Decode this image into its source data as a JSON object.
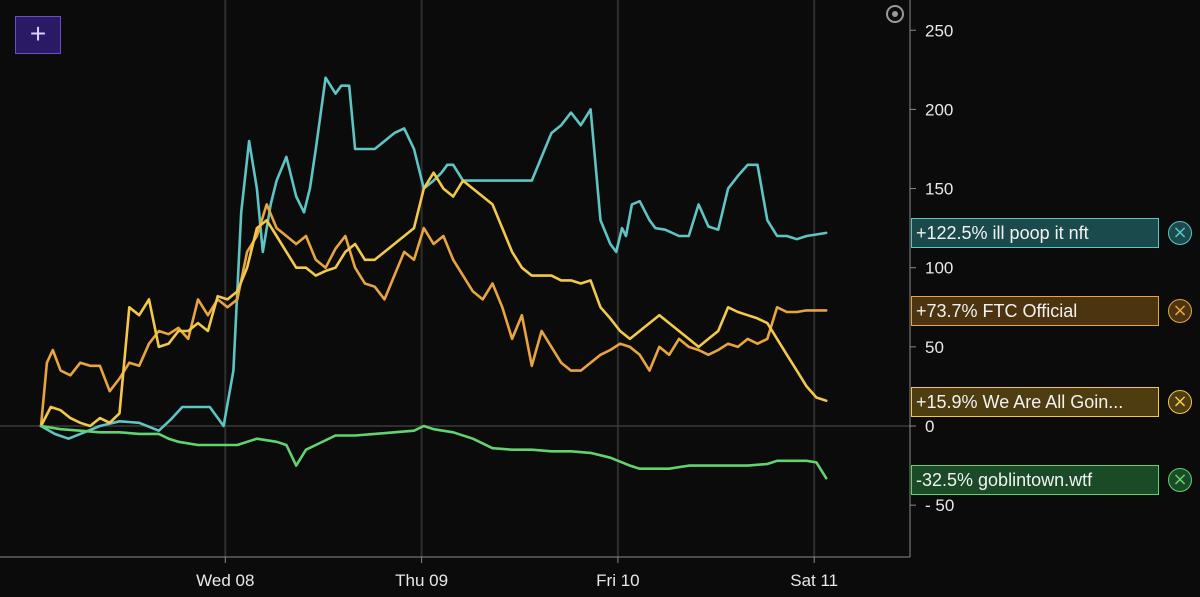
{
  "toolbar": {
    "add_icon": "plus-icon",
    "add_label": "+",
    "settings_icon": "target-icon"
  },
  "chart_data": {
    "type": "line",
    "title": "",
    "xlabel": "",
    "ylabel": "",
    "ylim": [
      -90,
      265
    ],
    "y_ticks": [
      250,
      200,
      150,
      100,
      50,
      0,
      -50
    ],
    "y_tick_labels": [
      "250",
      "200",
      "150",
      "100",
      "50",
      "0",
      "- 50"
    ],
    "x_ticks": [
      {
        "x": 1.0,
        "label": "Wed 08"
      },
      {
        "x": 2.0,
        "label": "Thu 09"
      },
      {
        "x": 3.0,
        "label": "Fri 10"
      },
      {
        "x": 4.0,
        "label": "Sat 11"
      }
    ],
    "xlim": [
      -0.2,
      4.43
    ],
    "grid": true,
    "legend_position": "right",
    "series": [
      {
        "name": "ill poop it nft",
        "legend_label": "+122.5% ill poop it nft",
        "color": "#5ec4c4",
        "legend_bg": "#1b4a4d",
        "close_icon": "close-icon",
        "x": [
          0.0,
          0.07,
          0.14,
          0.2,
          0.3,
          0.4,
          0.5,
          0.6,
          0.66,
          0.72,
          0.8,
          0.86,
          0.93,
          0.98,
          1.02,
          1.06,
          1.1,
          1.13,
          1.17,
          1.2,
          1.25,
          1.3,
          1.34,
          1.37,
          1.4,
          1.45,
          1.5,
          1.53,
          1.57,
          1.6,
          1.65,
          1.7,
          1.75,
          1.8,
          1.85,
          1.9,
          1.95,
          2.0,
          2.04,
          2.07,
          2.1,
          2.15,
          2.2,
          2.25,
          2.3,
          2.4,
          2.5,
          2.6,
          2.65,
          2.7,
          2.75,
          2.8,
          2.85,
          2.9,
          2.93,
          2.96,
          2.98,
          3.01,
          3.05,
          3.1,
          3.13,
          3.18,
          3.25,
          3.3,
          3.35,
          3.4,
          3.45,
          3.5,
          3.55,
          3.6,
          3.65,
          3.7,
          3.75,
          3.8,
          3.85,
          3.9,
          3.95,
          4.0
        ],
        "y": [
          0,
          -5,
          -8,
          -5,
          0,
          3,
          2,
          -3,
          4,
          12,
          12,
          12,
          0,
          35,
          135,
          180,
          150,
          110,
          140,
          155,
          170,
          145,
          135,
          150,
          175,
          220,
          210,
          215,
          215,
          175,
          175,
          175,
          180,
          185,
          188,
          175,
          150,
          155,
          160,
          165,
          165,
          155,
          155,
          155,
          155,
          155,
          155,
          185,
          190,
          198,
          190,
          200,
          130,
          115,
          110,
          125,
          120,
          140,
          142,
          130,
          125,
          124,
          120,
          120,
          140,
          126,
          124,
          150,
          158,
          165,
          165,
          130,
          120,
          120,
          118,
          120,
          121,
          122
        ]
      },
      {
        "name": "FTC Official",
        "legend_label": "+73.7% FTC Official",
        "color": "#e8a53f",
        "legend_bg": "#4d3410",
        "close_icon": "close-icon",
        "x": [
          0.0,
          0.03,
          0.06,
          0.1,
          0.15,
          0.2,
          0.25,
          0.3,
          0.35,
          0.4,
          0.45,
          0.5,
          0.55,
          0.6,
          0.65,
          0.7,
          0.75,
          0.8,
          0.85,
          0.9,
          0.95,
          1.0,
          1.05,
          1.1,
          1.15,
          1.2,
          1.25,
          1.3,
          1.35,
          1.4,
          1.45,
          1.5,
          1.55,
          1.6,
          1.65,
          1.7,
          1.75,
          1.8,
          1.85,
          1.9,
          1.95,
          2.0,
          2.05,
          2.1,
          2.15,
          2.2,
          2.25,
          2.3,
          2.35,
          2.4,
          2.45,
          2.5,
          2.55,
          2.6,
          2.65,
          2.7,
          2.75,
          2.8,
          2.85,
          2.9,
          2.95,
          3.0,
          3.05,
          3.1,
          3.15,
          3.2,
          3.25,
          3.3,
          3.35,
          3.4,
          3.45,
          3.5,
          3.55,
          3.6,
          3.65,
          3.7,
          3.75,
          3.8,
          3.85,
          3.9,
          3.95,
          4.0
        ],
        "y": [
          0,
          40,
          48,
          35,
          32,
          40,
          38,
          38,
          22,
          30,
          40,
          38,
          52,
          60,
          58,
          62,
          55,
          80,
          70,
          80,
          75,
          80,
          110,
          120,
          140,
          125,
          120,
          115,
          120,
          105,
          100,
          112,
          120,
          100,
          90,
          88,
          80,
          95,
          110,
          105,
          125,
          115,
          120,
          105,
          95,
          85,
          80,
          90,
          75,
          55,
          70,
          38,
          60,
          50,
          40,
          35,
          35,
          40,
          45,
          48,
          52,
          50,
          45,
          35,
          50,
          45,
          55,
          50,
          48,
          45,
          48,
          52,
          50,
          55,
          52,
          55,
          75,
          72,
          72,
          73,
          73,
          73
        ]
      },
      {
        "name": "We Are All Goin...",
        "legend_label": "+15.9% We Are All Goin...",
        "color": "#f2c94a",
        "legend_bg": "#4d3d10",
        "close_icon": "close-icon",
        "x": [
          0.0,
          0.05,
          0.1,
          0.15,
          0.2,
          0.25,
          0.3,
          0.35,
          0.4,
          0.45,
          0.5,
          0.55,
          0.6,
          0.65,
          0.7,
          0.75,
          0.8,
          0.85,
          0.9,
          0.95,
          1.0,
          1.05,
          1.1,
          1.15,
          1.2,
          1.25,
          1.3,
          1.35,
          1.4,
          1.45,
          1.5,
          1.55,
          1.6,
          1.65,
          1.7,
          1.75,
          1.8,
          1.85,
          1.9,
          1.95,
          2.0,
          2.05,
          2.1,
          2.15,
          2.2,
          2.25,
          2.3,
          2.35,
          2.4,
          2.45,
          2.5,
          2.55,
          2.6,
          2.65,
          2.7,
          2.75,
          2.8,
          2.85,
          2.9,
          2.95,
          3.0,
          3.05,
          3.1,
          3.15,
          3.2,
          3.25,
          3.3,
          3.35,
          3.4,
          3.45,
          3.5,
          3.55,
          3.6,
          3.65,
          3.7,
          3.75,
          3.8,
          3.85,
          3.9,
          3.95,
          4.0
        ],
        "y": [
          0,
          12,
          10,
          5,
          2,
          0,
          5,
          2,
          8,
          75,
          70,
          80,
          50,
          52,
          60,
          60,
          65,
          60,
          82,
          80,
          85,
          100,
          125,
          130,
          120,
          110,
          100,
          100,
          95,
          98,
          100,
          110,
          115,
          105,
          105,
          110,
          115,
          120,
          125,
          150,
          160,
          150,
          145,
          155,
          150,
          145,
          140,
          125,
          110,
          100,
          95,
          95,
          95,
          92,
          92,
          90,
          92,
          75,
          68,
          60,
          55,
          60,
          65,
          70,
          65,
          60,
          55,
          50,
          55,
          60,
          75,
          72,
          70,
          68,
          65,
          55,
          45,
          35,
          25,
          18,
          16
        ]
      },
      {
        "name": "goblintown.wtf",
        "legend_label": "-32.5% goblintown.wtf",
        "color": "#62d36e",
        "legend_bg": "#1a4a26",
        "close_icon": "close-icon",
        "x": [
          0.0,
          0.1,
          0.2,
          0.3,
          0.4,
          0.5,
          0.6,
          0.65,
          0.7,
          0.8,
          0.9,
          1.0,
          1.1,
          1.2,
          1.25,
          1.3,
          1.35,
          1.4,
          1.5,
          1.6,
          1.7,
          1.8,
          1.9,
          1.95,
          2.0,
          2.1,
          2.2,
          2.3,
          2.4,
          2.5,
          2.6,
          2.7,
          2.8,
          2.9,
          3.0,
          3.05,
          3.1,
          3.2,
          3.3,
          3.4,
          3.5,
          3.6,
          3.7,
          3.75,
          3.8,
          3.9,
          3.95,
          4.0
        ],
        "y": [
          0,
          -2,
          -3,
          -4,
          -4,
          -5,
          -5,
          -8,
          -10,
          -12,
          -12,
          -12,
          -8,
          -10,
          -12,
          -25,
          -15,
          -12,
          -6,
          -6,
          -5,
          -4,
          -3,
          0,
          -2,
          -4,
          -8,
          -14,
          -15,
          -15,
          -16,
          -16,
          -17,
          -20,
          -25,
          -27,
          -27,
          -27,
          -25,
          -25,
          -25,
          -25,
          -24,
          -22,
          -22,
          -22,
          -23,
          -33
        ]
      }
    ]
  }
}
